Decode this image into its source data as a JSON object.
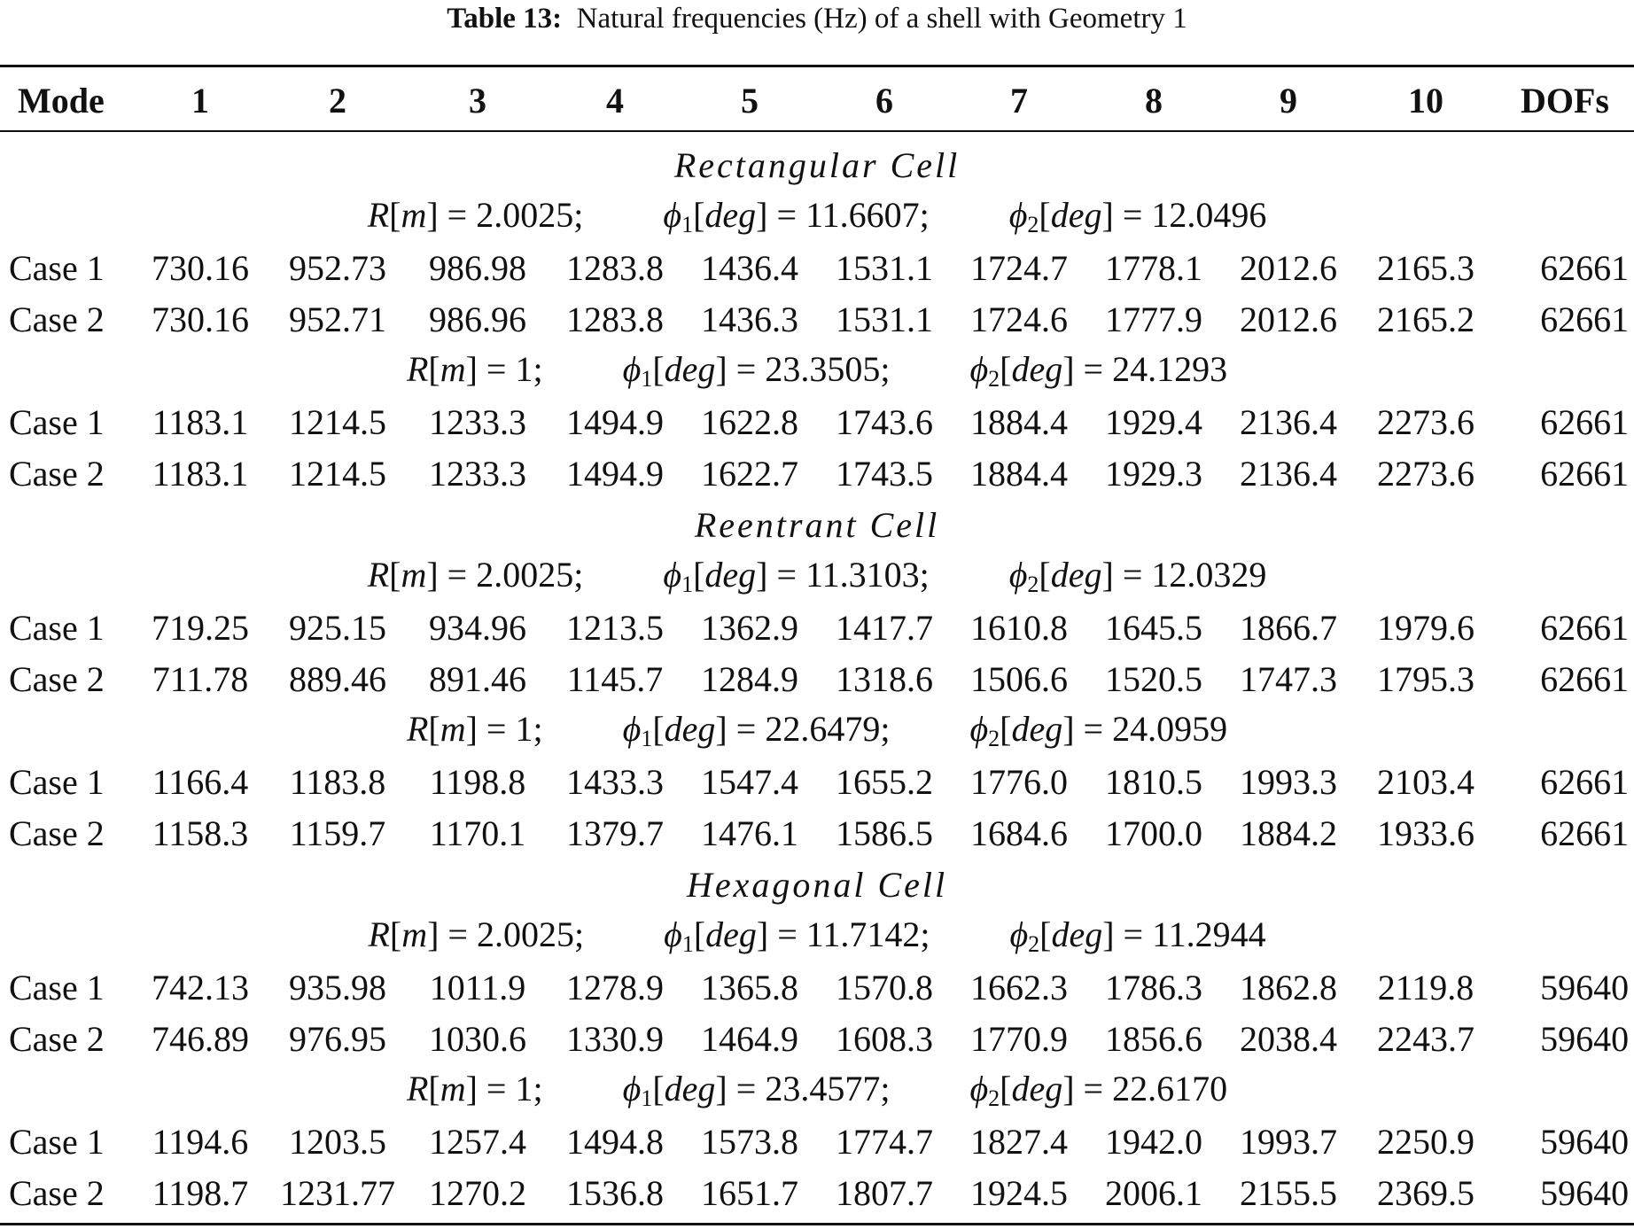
{
  "caption": {
    "label": "Table 13:",
    "text": "Natural frequencies (Hz) of a shell with Geometry 1"
  },
  "headers": [
    "Mode",
    "1",
    "2",
    "3",
    "4",
    "5",
    "6",
    "7",
    "8",
    "9",
    "10",
    "DOFs"
  ],
  "sections": [
    {
      "title": "Rectangular Cell",
      "groups": [
        {
          "R": "2.0025",
          "phi1": "11.6607",
          "phi2": "12.0496",
          "rows": [
            {
              "label": "Case 1",
              "values": [
                "730.16",
                "952.73",
                "986.98",
                "1283.8",
                "1436.4",
                "1531.1",
                "1724.7",
                "1778.1",
                "2012.6",
                "2165.3"
              ],
              "dofs": "62661"
            },
            {
              "label": "Case 2",
              "values": [
                "730.16",
                "952.71",
                "986.96",
                "1283.8",
                "1436.3",
                "1531.1",
                "1724.6",
                "1777.9",
                "2012.6",
                "2165.2"
              ],
              "dofs": "62661"
            }
          ]
        },
        {
          "R": "1",
          "phi1": "23.3505",
          "phi2": "24.1293",
          "rows": [
            {
              "label": "Case 1",
              "values": [
                "1183.1",
                "1214.5",
                "1233.3",
                "1494.9",
                "1622.8",
                "1743.6",
                "1884.4",
                "1929.4",
                "2136.4",
                "2273.6"
              ],
              "dofs": "62661"
            },
            {
              "label": "Case 2",
              "values": [
                "1183.1",
                "1214.5",
                "1233.3",
                "1494.9",
                "1622.7",
                "1743.5",
                "1884.4",
                "1929.3",
                "2136.4",
                "2273.6"
              ],
              "dofs": "62661"
            }
          ]
        }
      ]
    },
    {
      "title": "Reentrant Cell",
      "groups": [
        {
          "R": "2.0025",
          "phi1": "11.3103",
          "phi2": "12.0329",
          "rows": [
            {
              "label": "Case 1",
              "values": [
                "719.25",
                "925.15",
                "934.96",
                "1213.5",
                "1362.9",
                "1417.7",
                "1610.8",
                "1645.5",
                "1866.7",
                "1979.6"
              ],
              "dofs": "62661"
            },
            {
              "label": "Case 2",
              "values": [
                "711.78",
                "889.46",
                "891.46",
                "1145.7",
                "1284.9",
                "1318.6",
                "1506.6",
                "1520.5",
                "1747.3",
                "1795.3"
              ],
              "dofs": "62661"
            }
          ]
        },
        {
          "R": "1",
          "phi1": "22.6479",
          "phi2": "24.0959",
          "rows": [
            {
              "label": "Case 1",
              "values": [
                "1166.4",
                "1183.8",
                "1198.8",
                "1433.3",
                "1547.4",
                "1655.2",
                "1776.0",
                "1810.5",
                "1993.3",
                "2103.4"
              ],
              "dofs": "62661"
            },
            {
              "label": "Case 2",
              "values": [
                "1158.3",
                "1159.7",
                "1170.1",
                "1379.7",
                "1476.1",
                "1586.5",
                "1684.6",
                "1700.0",
                "1884.2",
                "1933.6"
              ],
              "dofs": "62661"
            }
          ]
        }
      ]
    },
    {
      "title": "Hexagonal Cell",
      "groups": [
        {
          "R": "2.0025",
          "phi1": "11.7142",
          "phi2": "11.2944",
          "rows": [
            {
              "label": "Case 1",
              "values": [
                "742.13",
                "935.98",
                "1011.9",
                "1278.9",
                "1365.8",
                "1570.8",
                "1662.3",
                "1786.3",
                "1862.8",
                "2119.8"
              ],
              "dofs": "59640"
            },
            {
              "label": "Case 2",
              "values": [
                "746.89",
                "976.95",
                "1030.6",
                "1330.9",
                "1464.9",
                "1608.3",
                "1770.9",
                "1856.6",
                "2038.4",
                "2243.7"
              ],
              "dofs": "59640"
            }
          ]
        },
        {
          "R": "1",
          "phi1": "23.4577",
          "phi2": "22.6170",
          "rows": [
            {
              "label": "Case 1",
              "values": [
                "1194.6",
                "1203.5",
                "1257.4",
                "1494.8",
                "1573.8",
                "1774.7",
                "1827.4",
                "1942.0",
                "1993.7",
                "2250.9"
              ],
              "dofs": "59640"
            },
            {
              "label": "Case 2",
              "values": [
                "1198.7",
                "1231.77",
                "1270.2",
                "1536.8",
                "1651.7",
                "1807.7",
                "1924.5",
                "2006.1",
                "2155.5",
                "2369.5"
              ],
              "dofs": "59640"
            }
          ]
        }
      ]
    }
  ]
}
